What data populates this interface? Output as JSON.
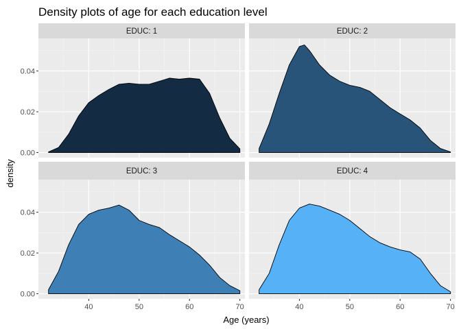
{
  "chart_data": {
    "type": "area",
    "title": "Density plots of age for each education level",
    "xlabel": "Age (years)",
    "ylabel": "density",
    "xlim": [
      30,
      71
    ],
    "ylim": [
      -0.0025,
      0.056
    ],
    "x_ticks": [
      40,
      50,
      60,
      70
    ],
    "x_tick_labels": [
      "40",
      "50",
      "60",
      "70"
    ],
    "y_ticks": [
      0.0,
      0.02,
      0.04
    ],
    "y_tick_labels": [
      "0.00",
      "0.02",
      "0.04"
    ],
    "grid": true,
    "legend": "none",
    "layout": "facet grid 2x2, shared axes",
    "series": [
      {
        "name": "EDUC: 1",
        "color": "#132B43",
        "points": [
          [
            32,
            0.0003
          ],
          [
            34,
            0.0025
          ],
          [
            36,
            0.009
          ],
          [
            38,
            0.018
          ],
          [
            40,
            0.0245
          ],
          [
            42,
            0.028
          ],
          [
            44,
            0.031
          ],
          [
            46,
            0.0335
          ],
          [
            48,
            0.034
          ],
          [
            50,
            0.0335
          ],
          [
            52,
            0.0335
          ],
          [
            54,
            0.035
          ],
          [
            56,
            0.0365
          ],
          [
            58,
            0.036
          ],
          [
            60,
            0.0365
          ],
          [
            62,
            0.036
          ],
          [
            64,
            0.029
          ],
          [
            66,
            0.017
          ],
          [
            68,
            0.007
          ],
          [
            70,
            0.0018
          ]
        ]
      },
      {
        "name": "EDUC: 2",
        "color": "#28547A",
        "points": [
          [
            32,
            0.002
          ],
          [
            34,
            0.014
          ],
          [
            36,
            0.029
          ],
          [
            38,
            0.043
          ],
          [
            40,
            0.052
          ],
          [
            41,
            0.0528
          ],
          [
            42,
            0.05
          ],
          [
            44,
            0.043
          ],
          [
            46,
            0.038
          ],
          [
            48,
            0.035
          ],
          [
            50,
            0.033
          ],
          [
            52,
            0.032
          ],
          [
            54,
            0.03
          ],
          [
            56,
            0.026
          ],
          [
            58,
            0.022
          ],
          [
            60,
            0.019
          ],
          [
            62,
            0.016
          ],
          [
            64,
            0.012
          ],
          [
            66,
            0.006
          ],
          [
            68,
            0.002
          ],
          [
            70,
            0.0003
          ]
        ]
      },
      {
        "name": "EDUC: 3",
        "color": "#3E80B6",
        "points": [
          [
            32,
            0.002
          ],
          [
            34,
            0.011
          ],
          [
            36,
            0.024
          ],
          [
            38,
            0.034
          ],
          [
            40,
            0.039
          ],
          [
            42,
            0.041
          ],
          [
            44,
            0.042
          ],
          [
            46,
            0.0435
          ],
          [
            48,
            0.041
          ],
          [
            50,
            0.036
          ],
          [
            52,
            0.034
          ],
          [
            54,
            0.0325
          ],
          [
            56,
            0.029
          ],
          [
            58,
            0.026
          ],
          [
            60,
            0.023
          ],
          [
            62,
            0.019
          ],
          [
            64,
            0.014
          ],
          [
            66,
            0.008
          ],
          [
            68,
            0.004
          ],
          [
            70,
            0.0015
          ]
        ]
      },
      {
        "name": "EDUC: 4",
        "color": "#56B1F7",
        "points": [
          [
            32,
            0.002
          ],
          [
            34,
            0.01
          ],
          [
            36,
            0.024
          ],
          [
            38,
            0.036
          ],
          [
            40,
            0.042
          ],
          [
            42,
            0.044
          ],
          [
            44,
            0.043
          ],
          [
            46,
            0.041
          ],
          [
            48,
            0.039
          ],
          [
            50,
            0.036
          ],
          [
            52,
            0.032
          ],
          [
            54,
            0.028
          ],
          [
            56,
            0.025
          ],
          [
            58,
            0.023
          ],
          [
            60,
            0.0215
          ],
          [
            62,
            0.0205
          ],
          [
            64,
            0.017
          ],
          [
            66,
            0.01
          ],
          [
            68,
            0.004
          ],
          [
            70,
            0.001
          ]
        ]
      }
    ]
  }
}
